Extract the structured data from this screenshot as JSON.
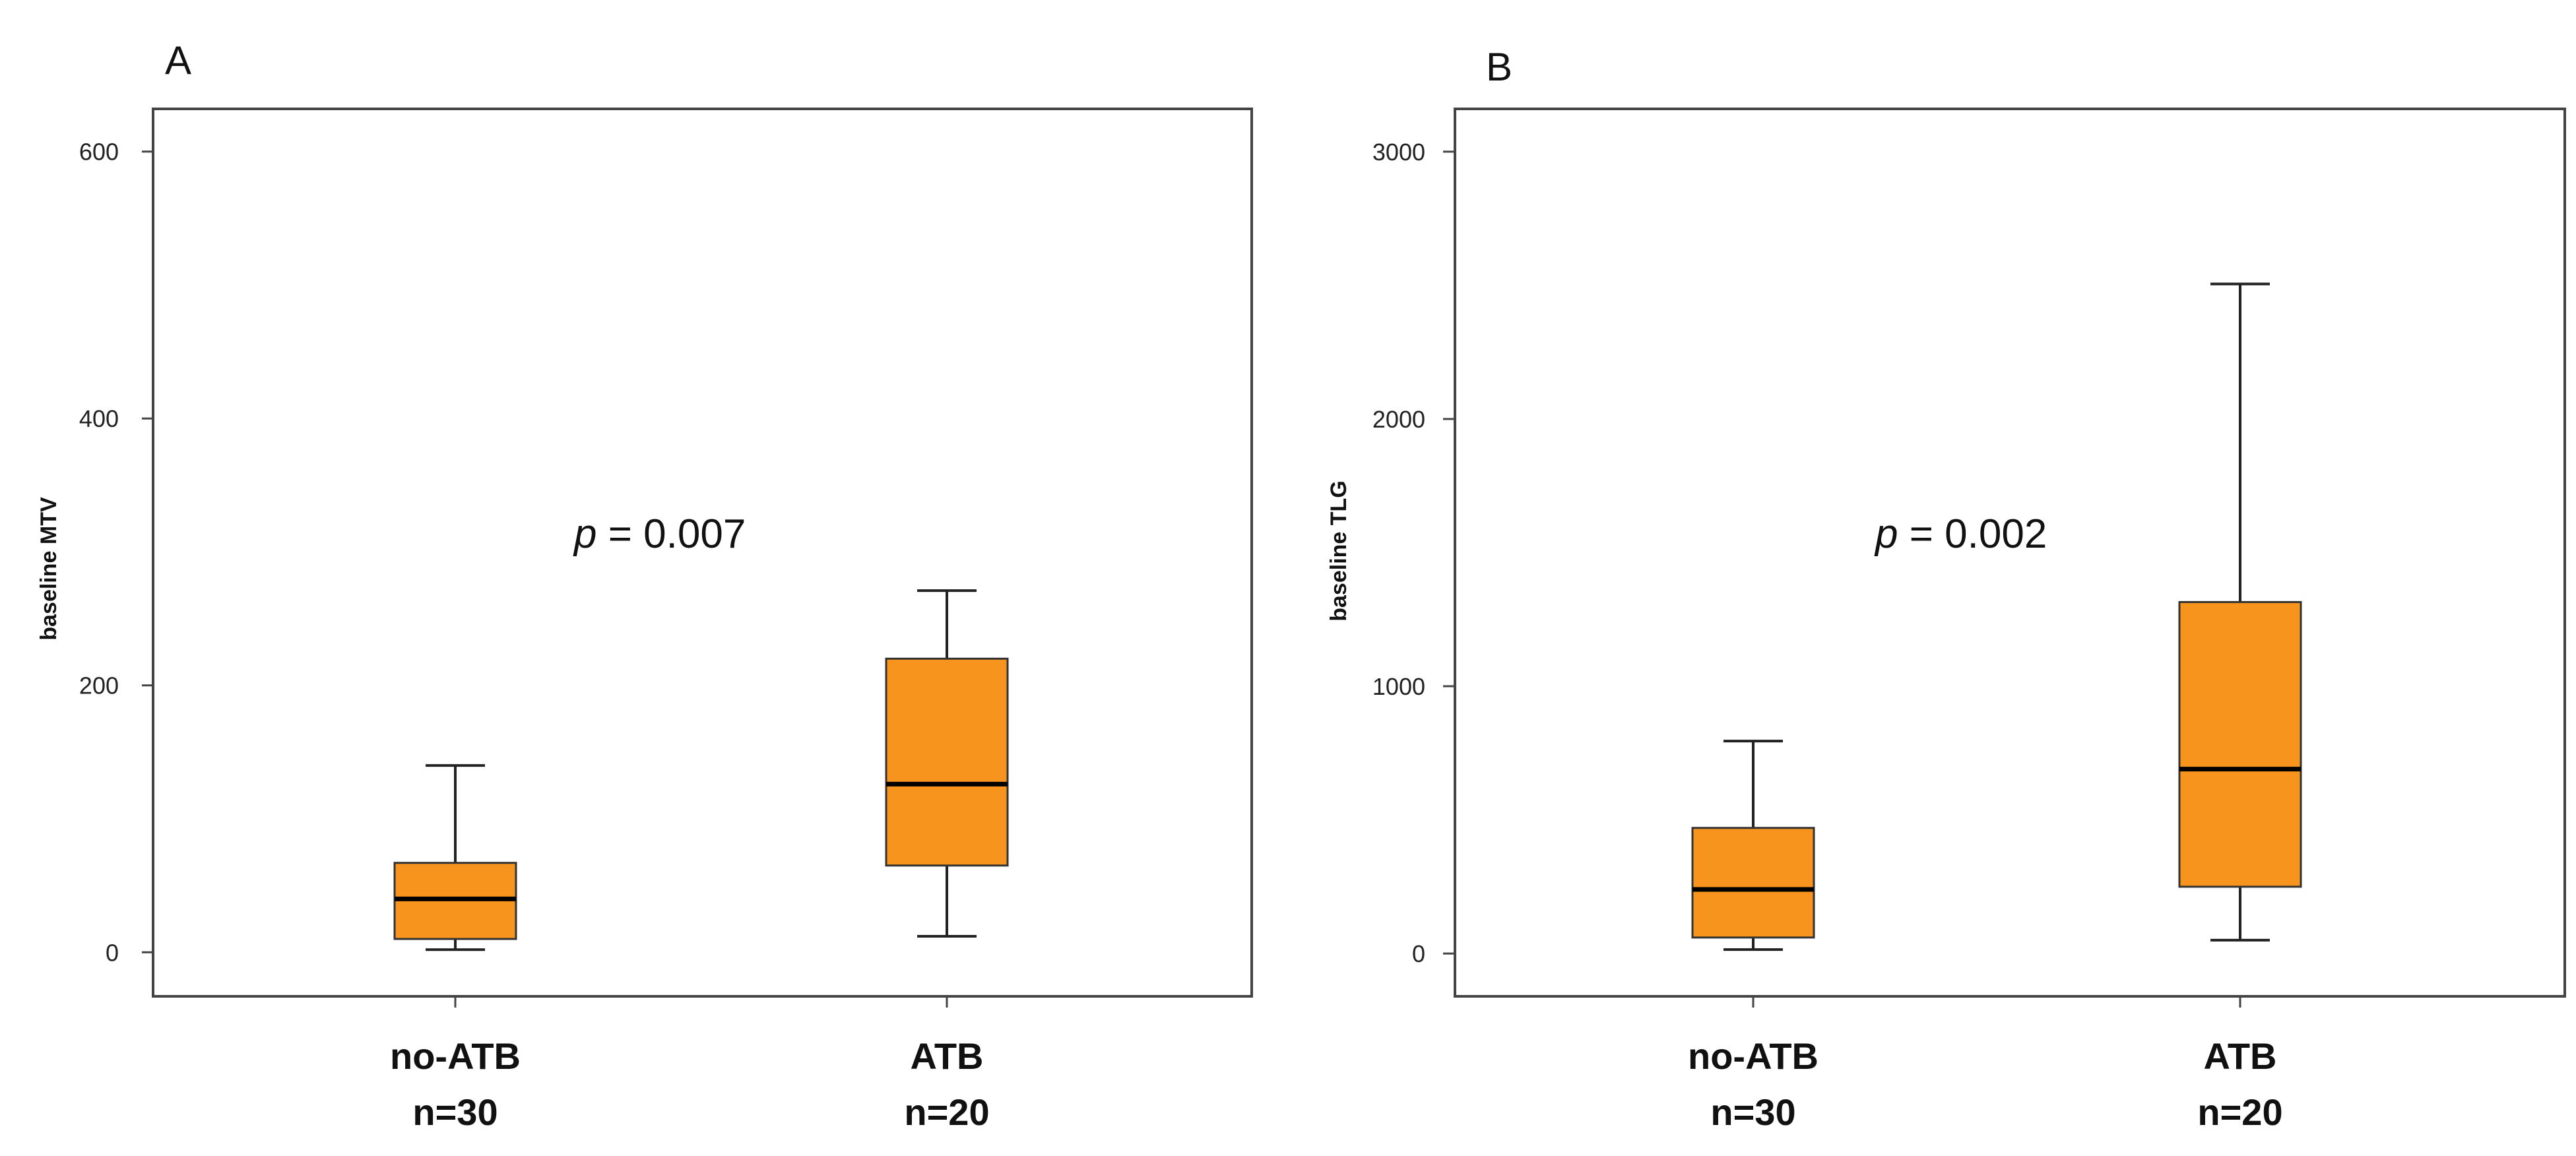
{
  "chart_data": [
    {
      "panel": "A",
      "type": "boxplot",
      "ylabel": "baseline MTV",
      "ylim": [
        -33,
        632
      ],
      "yticks": [
        0,
        200,
        400,
        600
      ],
      "categories": [
        {
          "name": "no-ATB",
          "n": "n=30"
        },
        {
          "name": "ATB",
          "n": "n=20"
        }
      ],
      "boxes": [
        {
          "category": "no-ATB",
          "whisker_low": 2,
          "q1": 10,
          "median": 40,
          "q3": 67,
          "whisker_high": 140
        },
        {
          "category": "ATB",
          "whisker_low": 12,
          "q1": 65,
          "median": 126,
          "q3": 220,
          "whisker_high": 271
        }
      ],
      "annotation": {
        "p": "p",
        "text": " = 0.007"
      }
    },
    {
      "panel": "B",
      "type": "boxplot",
      "ylabel": "baseline TLG",
      "ylim": [
        -160,
        3160
      ],
      "yticks": [
        0,
        1000,
        2000,
        3000
      ],
      "categories": [
        {
          "name": "no-ATB",
          "n": "n=30"
        },
        {
          "name": "ATB",
          "n": "n=20"
        }
      ],
      "boxes": [
        {
          "category": "no-ATB",
          "whisker_low": 15,
          "q1": 60,
          "median": 240,
          "q3": 470,
          "whisker_high": 795
        },
        {
          "category": "ATB",
          "whisker_low": 50,
          "q1": 250,
          "median": 690,
          "q3": 1315,
          "whisker_high": 2505
        }
      ],
      "annotation": {
        "p": "p",
        "text": " = 0.002"
      }
    }
  ],
  "colors": {
    "box_fill": "#f7941d",
    "box_edge": "#333333",
    "frame": "#444444",
    "median": "#000000"
  }
}
